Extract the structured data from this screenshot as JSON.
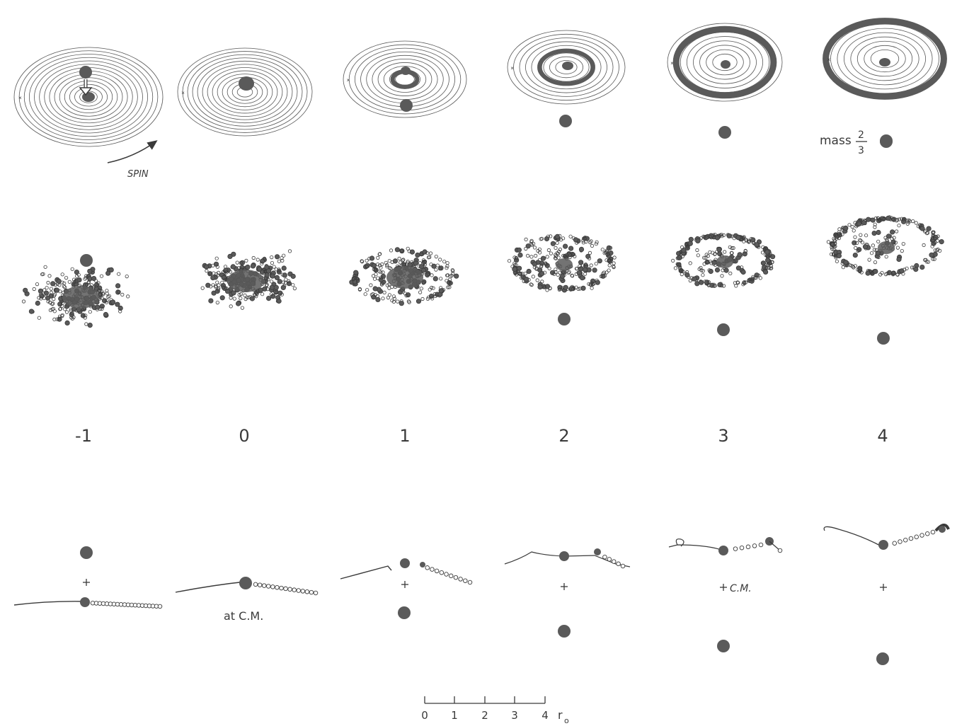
{
  "spin_label": "SPIN",
  "mass_label": {
    "word": "mass",
    "numerator": "2",
    "denominator": "3"
  },
  "time_labels": [
    "-1",
    "0",
    "1",
    "2",
    "3",
    "4"
  ],
  "center_of_mass_label": "C.M.",
  "at_center_of_mass_label": "at C.M.",
  "scale_bar": {
    "ticks": [
      "0",
      "1",
      "2",
      "3",
      "4"
    ],
    "unit": "r",
    "unit_subscript": "o"
  },
  "colors": {
    "ink": "#3a3a3a",
    "particle_fill": "#5a5a5a",
    "background": "#ffffff"
  }
}
